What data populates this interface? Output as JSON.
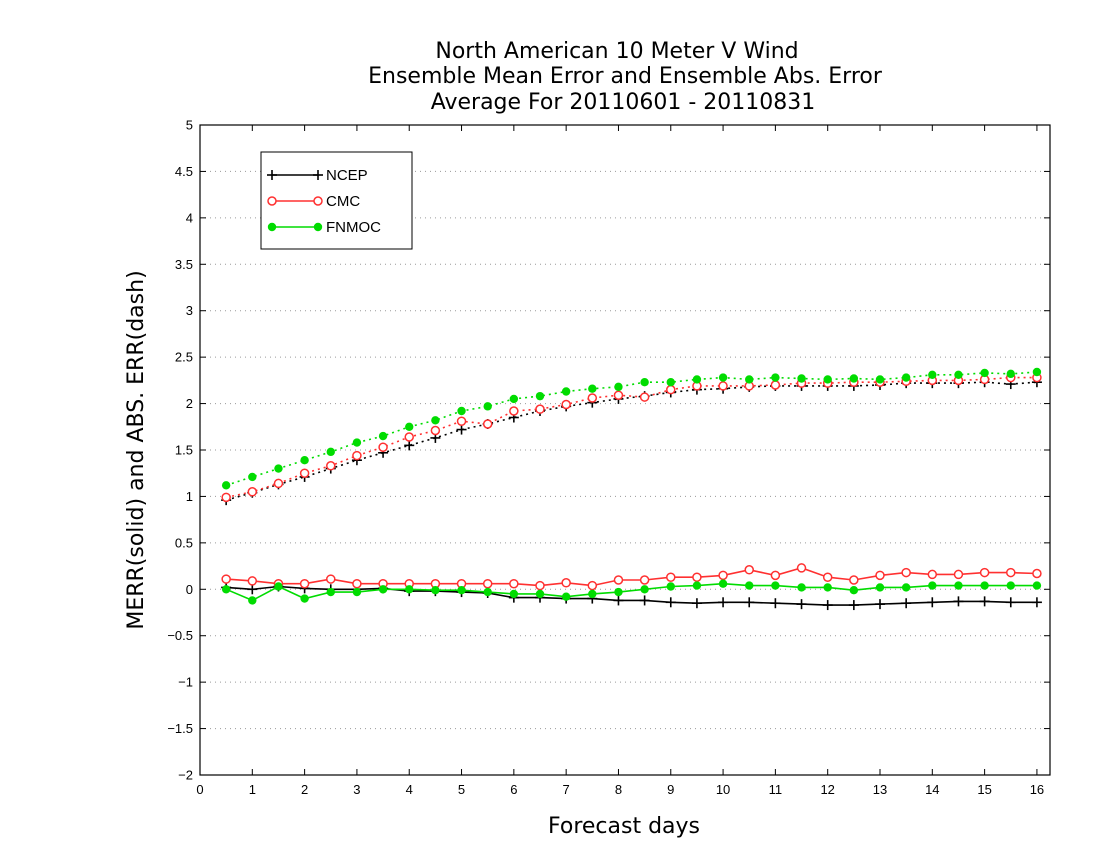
{
  "chart_data": {
    "type": "line",
    "title": [
      "North American 10 Meter V Wind",
      "Ensemble Mean Error and Ensemble Abs. Error",
      "Average For 20110601 - 20110831"
    ],
    "xlabel": "Forecast days",
    "ylabel": "MERR(solid) and ABS. ERR(dash)",
    "xlim": [
      0,
      16.25
    ],
    "ylim": [
      -2,
      5
    ],
    "xticks": [
      "0",
      "1",
      "2",
      "3",
      "4",
      "5",
      "6",
      "7",
      "8",
      "9",
      "10",
      "11",
      "12",
      "13",
      "14",
      "15",
      "16"
    ],
    "yticks": [
      "5",
      "4.5",
      "4",
      "3.5",
      "3",
      "2.5",
      "2",
      "1.5",
      "1",
      "0.5",
      "0",
      "−0.5",
      "−1",
      "−1.5",
      "−2"
    ],
    "grid": "horizontal dotted",
    "legend_position": "top-left",
    "x": [
      0.5,
      1,
      1.5,
      2,
      2.5,
      3,
      3.5,
      4,
      4.5,
      5,
      5.5,
      6,
      6.5,
      7,
      7.5,
      8,
      8.5,
      9,
      9.5,
      10,
      10.5,
      11,
      11.5,
      12,
      12.5,
      13,
      13.5,
      14,
      14.5,
      15,
      15.5,
      16
    ],
    "series": [
      {
        "name": "NCEP",
        "color": "#000000",
        "marker": "plus",
        "style": "solid",
        "values": [
          0.02,
          0.0,
          0.03,
          0.01,
          0.0,
          0.0,
          0.01,
          -0.02,
          -0.02,
          -0.03,
          -0.04,
          -0.09,
          -0.09,
          -0.1,
          -0.1,
          -0.12,
          -0.12,
          -0.14,
          -0.15,
          -0.14,
          -0.14,
          -0.15,
          -0.16,
          -0.17,
          -0.17,
          -0.16,
          -0.15,
          -0.14,
          -0.13,
          -0.13,
          -0.14,
          -0.14
        ]
      },
      {
        "name": "CMC",
        "color": "#ff3030",
        "marker": "open-circle",
        "style": "solid",
        "values": [
          0.11,
          0.09,
          0.06,
          0.06,
          0.11,
          0.06,
          0.06,
          0.06,
          0.06,
          0.06,
          0.06,
          0.06,
          0.04,
          0.07,
          0.04,
          0.1,
          0.1,
          0.13,
          0.13,
          0.15,
          0.21,
          0.15,
          0.23,
          0.13,
          0.1,
          0.15,
          0.18,
          0.16,
          0.16,
          0.18,
          0.18,
          0.17
        ]
      },
      {
        "name": "FNMOC",
        "color": "#00dc00",
        "marker": "filled-circle",
        "style": "solid",
        "values": [
          0.0,
          -0.12,
          0.03,
          -0.1,
          -0.03,
          -0.03,
          0.0,
          0.0,
          -0.01,
          -0.01,
          -0.03,
          -0.05,
          -0.05,
          -0.08,
          -0.05,
          -0.03,
          0.0,
          0.03,
          0.04,
          0.06,
          0.04,
          0.04,
          0.02,
          0.02,
          -0.01,
          0.02,
          0.02,
          0.04,
          0.04,
          0.04,
          0.04,
          0.04
        ]
      },
      {
        "name": "NCEP",
        "color": "#000000",
        "marker": "plus",
        "style": "dash",
        "values": [
          0.96,
          1.04,
          1.13,
          1.21,
          1.3,
          1.39,
          1.47,
          1.55,
          1.63,
          1.72,
          1.78,
          1.85,
          1.92,
          1.97,
          2.01,
          2.05,
          2.08,
          2.12,
          2.15,
          2.16,
          2.18,
          2.19,
          2.19,
          2.19,
          2.19,
          2.2,
          2.22,
          2.22,
          2.22,
          2.23,
          2.21,
          2.23
        ]
      },
      {
        "name": "CMC",
        "color": "#ff3030",
        "marker": "open-circle",
        "style": "dash",
        "values": [
          0.99,
          1.05,
          1.14,
          1.25,
          1.33,
          1.44,
          1.53,
          1.64,
          1.71,
          1.81,
          1.78,
          1.92,
          1.94,
          1.99,
          2.06,
          2.09,
          2.07,
          2.15,
          2.19,
          2.19,
          2.19,
          2.2,
          2.22,
          2.22,
          2.23,
          2.23,
          2.24,
          2.25,
          2.25,
          2.26,
          2.28,
          2.28
        ]
      },
      {
        "name": "FNMOC",
        "color": "#00dc00",
        "marker": "filled-circle",
        "style": "dash",
        "values": [
          1.12,
          1.21,
          1.3,
          1.39,
          1.48,
          1.58,
          1.65,
          1.75,
          1.82,
          1.92,
          1.97,
          2.05,
          2.08,
          2.13,
          2.16,
          2.18,
          2.23,
          2.23,
          2.26,
          2.28,
          2.26,
          2.28,
          2.27,
          2.26,
          2.27,
          2.26,
          2.28,
          2.31,
          2.31,
          2.33,
          2.32,
          2.34
        ]
      }
    ]
  }
}
